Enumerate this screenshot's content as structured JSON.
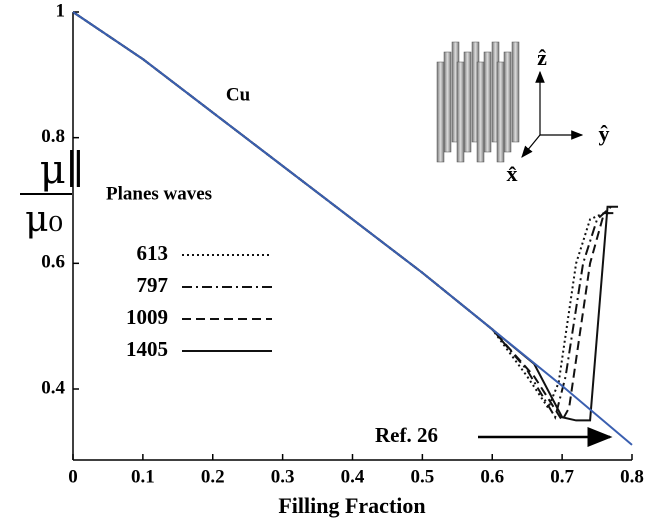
{
  "chart_data": {
    "type": "line",
    "x_label": "Filling Fraction",
    "y_label": {
      "numerator": "μ∥",
      "denominator": "μ₀"
    },
    "annotation": "Cu",
    "legend_title": "Planes waves",
    "inset_labels": [
      "ẑ",
      "ŷ",
      "x̂"
    ],
    "xlim": [
      0,
      0.8
    ],
    "ylim": [
      0.287,
      1
    ],
    "xticks": [
      0,
      0.1,
      0.2,
      0.3,
      0.4,
      0.5,
      0.6,
      0.7,
      0.8
    ],
    "yticks": [
      0.4,
      0.6,
      0.8,
      1
    ],
    "reference": {
      "name": "Ref. 26",
      "color": "#3a5fb0",
      "x": [
        0,
        0.1,
        0.2,
        0.3,
        0.4,
        0.5,
        0.6,
        0.7,
        0.8
      ],
      "values": [
        1,
        0.925,
        0.84,
        0.755,
        0.67,
        0.585,
        0.495,
        0.405,
        0.311
      ]
    },
    "series": [
      {
        "name": "613",
        "color": "#111",
        "dash": "2,3",
        "x": [
          0,
          0.1,
          0.2,
          0.3,
          0.4,
          0.5,
          0.6,
          0.65,
          0.68,
          0.695,
          0.72,
          0.74,
          0.76,
          0.77
        ],
        "values": [
          1,
          0.925,
          0.84,
          0.755,
          0.67,
          0.585,
          0.495,
          0.42,
          0.37,
          0.41,
          0.6,
          0.67,
          0.68,
          0.68
        ]
      },
      {
        "name": "797",
        "color": "#111",
        "dash": "10,4,2,4",
        "x": [
          0,
          0.1,
          0.2,
          0.3,
          0.4,
          0.5,
          0.6,
          0.65,
          0.69,
          0.705,
          0.73,
          0.75,
          0.77
        ],
        "values": [
          1,
          0.925,
          0.84,
          0.755,
          0.67,
          0.585,
          0.495,
          0.43,
          0.355,
          0.42,
          0.6,
          0.67,
          0.69
        ]
      },
      {
        "name": "1009",
        "color": "#111",
        "dash": "9,5",
        "x": [
          0,
          0.1,
          0.2,
          0.3,
          0.4,
          0.5,
          0.6,
          0.66,
          0.7,
          0.71,
          0.74,
          0.76,
          0.775
        ],
        "values": [
          1,
          0.925,
          0.84,
          0.755,
          0.67,
          0.585,
          0.495,
          0.42,
          0.35,
          0.37,
          0.6,
          0.68,
          0.68
        ]
      },
      {
        "name": "1405",
        "color": "#111",
        "dash": "none",
        "x": [
          0,
          0.1,
          0.2,
          0.3,
          0.4,
          0.5,
          0.6,
          0.66,
          0.7,
          0.72,
          0.74,
          0.765,
          0.78
        ],
        "values": [
          1,
          0.925,
          0.84,
          0.755,
          0.67,
          0.585,
          0.495,
          0.44,
          0.355,
          0.35,
          0.35,
          0.69,
          0.69
        ]
      }
    ]
  }
}
